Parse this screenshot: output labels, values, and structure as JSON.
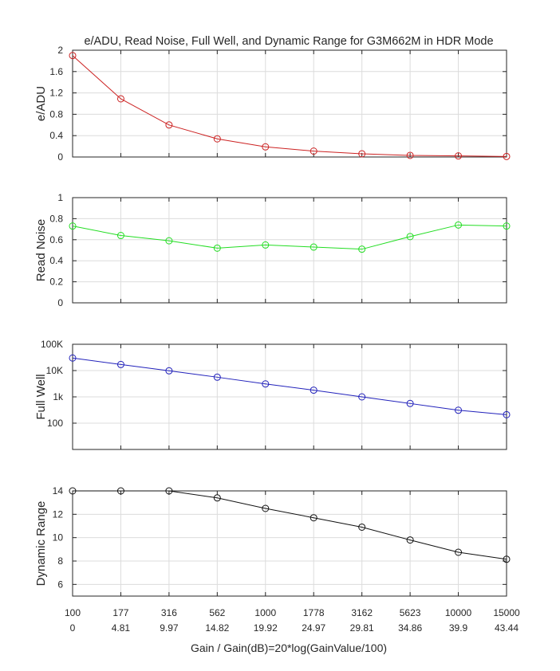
{
  "figure": {
    "title": "e/ADU, Read Noise, Full Well, and Dynamic Range for G3M662M in HDR Mode",
    "xlabel": "Gain / Gain(dB)=20*log(GainValue/100)"
  },
  "chart_data": [
    {
      "type": "line",
      "ylabel": "e/ADU",
      "x": [
        100,
        177,
        316,
        562,
        1000,
        1778,
        3162,
        5623,
        10000,
        15000
      ],
      "x_tick_labels": [
        "100",
        "177",
        "316",
        "562",
        "1000",
        "1778",
        "3162",
        "5623",
        "10000",
        "15000"
      ],
      "x_tick_labels_db": [
        "0",
        "4.81",
        "9.97",
        "14.82",
        "19.92",
        "24.97",
        "29.81",
        "34.86",
        "39.9",
        "43.44"
      ],
      "ylim": [
        0,
        2
      ],
      "yticks": [
        0,
        0.4,
        0.8,
        1.2,
        1.6,
        2
      ],
      "ytick_labels": [
        "0",
        "0.4",
        "0.8",
        "1.2",
        "1.6",
        "2"
      ],
      "grid": true,
      "color": "#cc2222",
      "marker": "circle",
      "series": [
        {
          "values": [
            1.9,
            1.09,
            0.6,
            0.34,
            0.19,
            0.11,
            0.06,
            0.03,
            0.02,
            0.01
          ]
        }
      ]
    },
    {
      "type": "line",
      "ylabel": "Read Noise",
      "x": [
        100,
        177,
        316,
        562,
        1000,
        1778,
        3162,
        5623,
        10000,
        15000
      ],
      "ylim": [
        0,
        1
      ],
      "yticks": [
        0,
        0.2,
        0.4,
        0.6,
        0.8,
        1
      ],
      "ytick_labels": [
        "0",
        "0.2",
        "0.4",
        "0.6",
        "0.8",
        "1"
      ],
      "grid": true,
      "color": "#22dd22",
      "marker": "circle",
      "series": [
        {
          "values": [
            0.73,
            0.64,
            0.59,
            0.52,
            0.55,
            0.53,
            0.51,
            0.63,
            0.74,
            0.73
          ]
        }
      ]
    },
    {
      "type": "line",
      "ylabel": "Full Well",
      "x": [
        100,
        177,
        316,
        562,
        1000,
        1778,
        3162,
        5623,
        10000,
        15000
      ],
      "yscale": "log",
      "ylim": [
        10,
        100000
      ],
      "yticks": [
        100,
        1000,
        10000,
        100000
      ],
      "ytick_labels": [
        "100",
        "1k",
        "10K",
        "100K"
      ],
      "grid": true,
      "color": "#2222bb",
      "marker": "circle",
      "series": [
        {
          "values": [
            30000,
            17000,
            9800,
            5600,
            3100,
            1800,
            1000,
            560,
            310,
            210
          ]
        }
      ]
    },
    {
      "type": "line",
      "ylabel": "Dynamic Range",
      "x": [
        100,
        177,
        316,
        562,
        1000,
        1778,
        3162,
        5623,
        10000,
        15000
      ],
      "ylim": [
        5,
        14
      ],
      "yticks": [
        6,
        8,
        10,
        12,
        14
      ],
      "ytick_labels": [
        "6",
        "8",
        "10",
        "12",
        "14"
      ],
      "grid": true,
      "color": "#111111",
      "marker": "circle",
      "series": [
        {
          "values": [
            14.0,
            14.0,
            14.0,
            13.4,
            12.5,
            11.7,
            10.9,
            9.8,
            8.75,
            8.15
          ]
        }
      ]
    }
  ]
}
